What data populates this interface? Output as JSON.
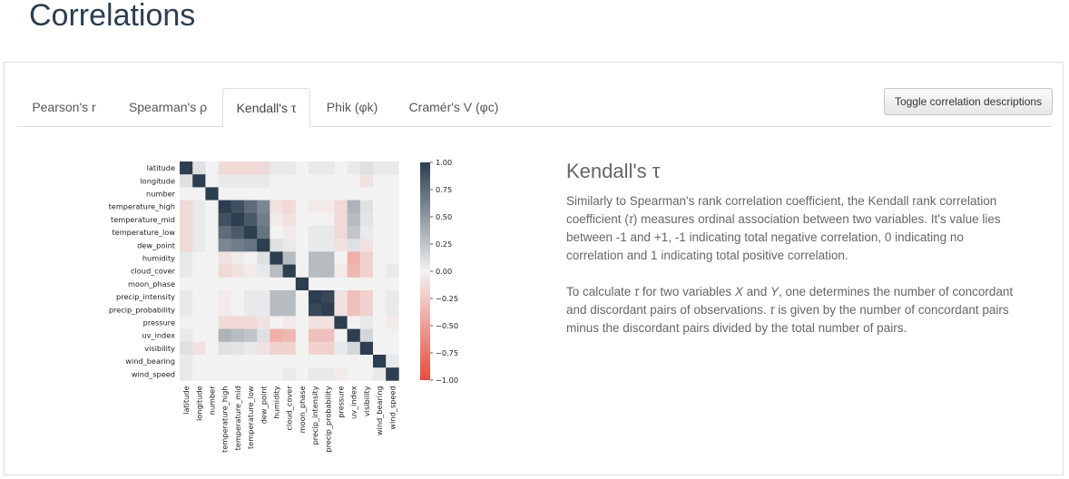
{
  "page": {
    "title": "Correlations"
  },
  "tabs": [
    {
      "label": "Pearson's r",
      "active": false
    },
    {
      "label": "Spearman's ρ",
      "active": false
    },
    {
      "label": "Kendall's τ",
      "active": true
    },
    {
      "label": "Phik (φk)",
      "active": false
    },
    {
      "label": "Cramér's V (φc)",
      "active": false
    }
  ],
  "toggle_button": {
    "label": "Toggle correlation descriptions"
  },
  "description": {
    "title": "Kendall's τ",
    "p1": {
      "a": "Similarly to Spearman's rank correlation coefficient, the Kendall rank correlation coefficient (",
      "tau": "τ",
      "b": ") measures ordinal association between two variables. It's value lies between -1 and +1, -1 indicating total negative correlation, 0 indicating no correlation and 1 indicating total positive correlation."
    },
    "p2": {
      "a": "To calculate ",
      "tau1": "τ",
      "b": " for two variables ",
      "x": "X",
      "c": " and ",
      "y": "Y",
      "d": ", one determines the number of concordant and discordant pairs of observations. ",
      "tau2": "τ",
      "e": " is given by the number of concordant pairs minus the discordant pairs divided by the total number of pairs."
    }
  },
  "colors": {
    "positive": "#2c3e50",
    "neutral": "#f2f2f2",
    "negative": "#e74c3c",
    "title": "#2c3e50",
    "text": "#666666"
  },
  "chart_data": {
    "type": "heatmap",
    "variables": [
      "latitude",
      "longitude",
      "number",
      "temperature_high",
      "temperature_mid",
      "temperature_low",
      "dew_point",
      "humidity",
      "cloud_cover",
      "moon_phase",
      "precip_intensity",
      "precip_probability",
      "pressure",
      "uv_index",
      "visibility",
      "wind_bearing",
      "wind_speed"
    ],
    "matrix": [
      [
        1.0,
        0.1,
        0.0,
        -0.15,
        -0.15,
        -0.15,
        -0.15,
        0.05,
        0.05,
        0.0,
        0.05,
        0.05,
        0.0,
        0.05,
        0.1,
        0.05,
        0.05
      ],
      [
        0.1,
        1.0,
        0.0,
        0.05,
        0.05,
        0.05,
        0.05,
        0.0,
        0.0,
        0.0,
        0.0,
        0.0,
        0.0,
        0.0,
        -0.1,
        0.0,
        0.0
      ],
      [
        0.0,
        0.0,
        1.0,
        0.0,
        0.0,
        0.0,
        0.0,
        0.0,
        0.0,
        0.0,
        0.0,
        0.0,
        0.0,
        0.0,
        0.0,
        0.0,
        0.0
      ],
      [
        -0.15,
        0.05,
        0.0,
        1.0,
        0.9,
        0.75,
        0.6,
        -0.1,
        -0.15,
        0.0,
        -0.05,
        -0.05,
        -0.15,
        0.35,
        0.1,
        0.0,
        0.0
      ],
      [
        -0.15,
        0.05,
        0.0,
        0.9,
        1.0,
        0.85,
        0.65,
        -0.05,
        -0.1,
        0.0,
        0.0,
        0.0,
        -0.15,
        0.3,
        0.08,
        0.0,
        0.0
      ],
      [
        -0.15,
        0.05,
        0.0,
        0.75,
        0.85,
        1.0,
        0.7,
        0.0,
        -0.05,
        0.0,
        0.05,
        0.05,
        -0.15,
        0.25,
        0.05,
        0.0,
        0.0
      ],
      [
        -0.15,
        0.05,
        0.0,
        0.6,
        0.65,
        0.7,
        1.0,
        0.1,
        0.05,
        0.0,
        0.05,
        0.05,
        -0.1,
        0.1,
        -0.1,
        0.0,
        0.0
      ],
      [
        0.05,
        0.0,
        0.0,
        -0.1,
        -0.05,
        0.0,
        0.1,
        1.0,
        0.3,
        0.0,
        0.3,
        0.3,
        0.0,
        -0.4,
        -0.2,
        0.0,
        0.0
      ],
      [
        0.05,
        0.0,
        0.0,
        -0.15,
        -0.1,
        -0.05,
        0.05,
        0.3,
        1.0,
        0.0,
        0.3,
        0.3,
        -0.05,
        -0.35,
        -0.2,
        0.0,
        0.05
      ],
      [
        0.0,
        0.0,
        0.0,
        0.0,
        0.0,
        0.0,
        0.0,
        0.0,
        0.0,
        1.0,
        0.0,
        0.0,
        0.0,
        0.0,
        0.0,
        0.0,
        0.0
      ],
      [
        0.05,
        0.0,
        0.0,
        -0.05,
        0.0,
        0.05,
        0.05,
        0.3,
        0.3,
        0.0,
        1.0,
        0.95,
        -0.1,
        -0.3,
        -0.2,
        0.0,
        0.05
      ],
      [
        0.05,
        0.0,
        0.0,
        -0.05,
        0.0,
        0.05,
        0.05,
        0.3,
        0.3,
        0.0,
        0.95,
        1.0,
        -0.1,
        -0.3,
        -0.2,
        0.0,
        0.05
      ],
      [
        0.0,
        0.0,
        0.0,
        -0.15,
        -0.15,
        -0.15,
        -0.1,
        0.0,
        -0.05,
        0.0,
        -0.1,
        -0.1,
        1.0,
        0.0,
        0.05,
        0.0,
        -0.05
      ],
      [
        0.05,
        0.0,
        0.0,
        0.35,
        0.3,
        0.25,
        0.1,
        -0.4,
        -0.35,
        0.0,
        -0.3,
        -0.3,
        0.0,
        1.0,
        0.15,
        0.0,
        0.0
      ],
      [
        0.1,
        -0.1,
        0.0,
        0.1,
        0.08,
        0.05,
        -0.1,
        -0.2,
        -0.2,
        0.0,
        -0.2,
        -0.2,
        0.05,
        0.15,
        1.0,
        0.0,
        0.0
      ],
      [
        0.05,
        0.0,
        0.0,
        0.0,
        0.0,
        0.0,
        0.0,
        0.0,
        0.0,
        0.0,
        0.0,
        0.0,
        0.0,
        0.0,
        0.0,
        1.0,
        0.05
      ],
      [
        0.05,
        0.0,
        0.0,
        0.0,
        0.0,
        0.0,
        0.0,
        0.0,
        0.05,
        0.0,
        0.05,
        0.05,
        -0.05,
        0.0,
        0.0,
        0.05,
        1.0
      ]
    ],
    "vmin": -1.0,
    "vmax": 1.0,
    "colorbar_ticks": [
      "1.00",
      "0.75",
      "0.50",
      "0.25",
      "0.00",
      "−0.25",
      "−0.50",
      "−0.75",
      "−1.00"
    ]
  }
}
